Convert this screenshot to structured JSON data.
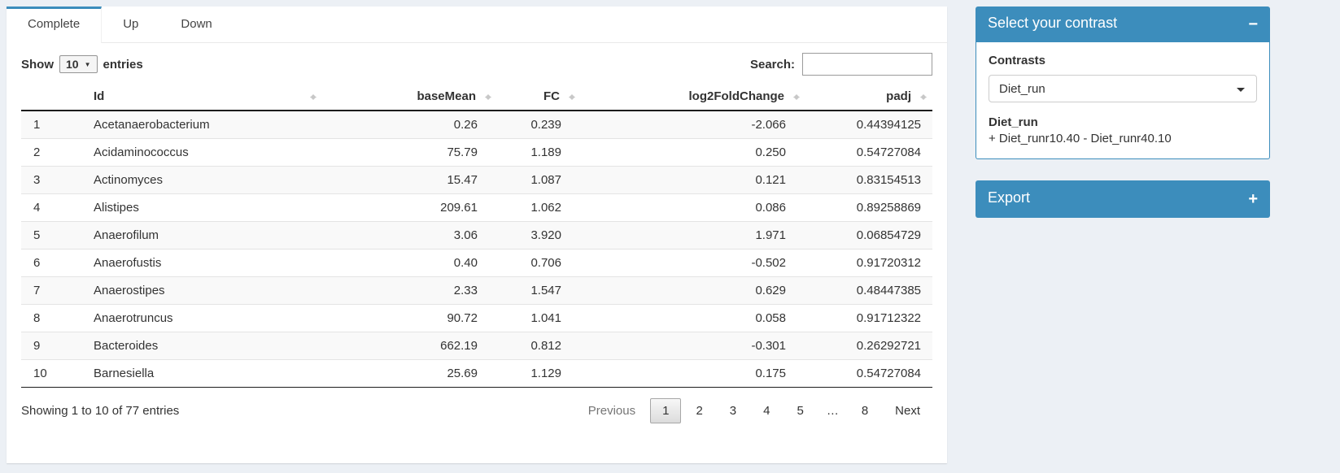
{
  "tabs": {
    "items": [
      {
        "label": "Complete",
        "active": true
      },
      {
        "label": "Up",
        "active": false
      },
      {
        "label": "Down",
        "active": false
      }
    ]
  },
  "controls": {
    "show_label": "Show",
    "page_length": "10",
    "entries_label": "entries",
    "search_label": "Search:",
    "search_value": ""
  },
  "table": {
    "headers": {
      "id": "Id",
      "base_mean": "baseMean",
      "fc": "FC",
      "log2fc": "log2FoldChange",
      "padj": "padj"
    },
    "rows": [
      {
        "index": "1",
        "id": "Acetanaerobacterium",
        "base_mean": "0.26",
        "fc": "0.239",
        "log2fc": "-2.066",
        "padj": "0.44394125"
      },
      {
        "index": "2",
        "id": "Acidaminococcus",
        "base_mean": "75.79",
        "fc": "1.189",
        "log2fc": "0.250",
        "padj": "0.54727084"
      },
      {
        "index": "3",
        "id": "Actinomyces",
        "base_mean": "15.47",
        "fc": "1.087",
        "log2fc": "0.121",
        "padj": "0.83154513"
      },
      {
        "index": "4",
        "id": "Alistipes",
        "base_mean": "209.61",
        "fc": "1.062",
        "log2fc": "0.086",
        "padj": "0.89258869"
      },
      {
        "index": "5",
        "id": "Anaerofilum",
        "base_mean": "3.06",
        "fc": "3.920",
        "log2fc": "1.971",
        "padj": "0.06854729"
      },
      {
        "index": "6",
        "id": "Anaerofustis",
        "base_mean": "0.40",
        "fc": "0.706",
        "log2fc": "-0.502",
        "padj": "0.91720312"
      },
      {
        "index": "7",
        "id": "Anaerostipes",
        "base_mean": "2.33",
        "fc": "1.547",
        "log2fc": "0.629",
        "padj": "0.48447385"
      },
      {
        "index": "8",
        "id": "Anaerotruncus",
        "base_mean": "90.72",
        "fc": "1.041",
        "log2fc": "0.058",
        "padj": "0.91712322"
      },
      {
        "index": "9",
        "id": "Bacteroides",
        "base_mean": "662.19",
        "fc": "0.812",
        "log2fc": "-0.301",
        "padj": "0.26292721"
      },
      {
        "index": "10",
        "id": "Barnesiella",
        "base_mean": "25.69",
        "fc": "1.129",
        "log2fc": "0.175",
        "padj": "0.54727084"
      }
    ]
  },
  "footer": {
    "info": "Showing 1 to 10 of 77 entries",
    "pagination": [
      {
        "label": "Previous",
        "state": "disabled"
      },
      {
        "label": "1",
        "state": "active"
      },
      {
        "label": "2",
        "state": "normal"
      },
      {
        "label": "3",
        "state": "normal"
      },
      {
        "label": "4",
        "state": "normal"
      },
      {
        "label": "5",
        "state": "normal"
      },
      {
        "label": "…",
        "state": "ellipsis"
      },
      {
        "label": "8",
        "state": "normal"
      },
      {
        "label": "Next",
        "state": "normal"
      }
    ]
  },
  "contrast_panel": {
    "title": "Select your contrast",
    "collapse_icon": "−",
    "contrasts_label": "Contrasts",
    "selected_contrast": "Diet_run",
    "contrast_name": "Diet_run",
    "contrast_formula": "+ Diet_runr10.40 - Diet_runr40.10"
  },
  "export_panel": {
    "title": "Export",
    "expand_icon": "+"
  },
  "colors": {
    "primary": "#3c8dbc",
    "page_background": "#ecf0f5"
  }
}
